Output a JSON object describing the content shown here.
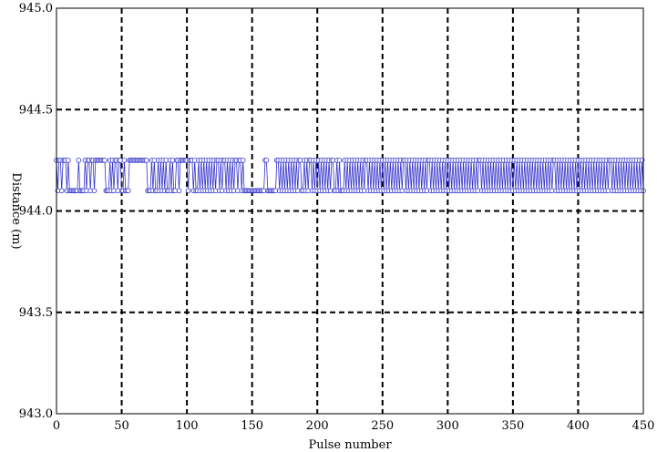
{
  "chart_data": {
    "type": "line",
    "title": "",
    "xlabel": "Pulse number",
    "ylabel": "Distance (m)",
    "xlim": [
      0,
      450
    ],
    "ylim": [
      943.0,
      945.0
    ],
    "xticks": [
      0,
      50,
      100,
      150,
      200,
      250,
      300,
      350,
      400,
      450
    ],
    "xtick_labels": [
      "0",
      "50",
      "100",
      "150",
      "200",
      "250",
      "300",
      "350",
      "400",
      "450"
    ],
    "yticks": [
      943.0,
      943.5,
      944.0,
      944.5,
      945.0
    ],
    "ytick_labels": [
      "943.0",
      "943.5",
      "944.0",
      "944.5",
      "945.0"
    ],
    "grid": true,
    "grid_style": "dashed",
    "series": [
      {
        "marker": "open-circle",
        "color": "#3333cc",
        "levels": [
          944.1,
          944.25
        ],
        "x_range": [
          0,
          450
        ],
        "count": 451,
        "y": [
          944.25,
          944.1,
          944.25,
          944.25,
          944.1,
          944.25,
          944.25,
          944.25,
          944.1,
          944.25,
          944.1,
          944.1,
          944.1,
          944.1,
          944.1,
          944.1,
          944.1,
          944.25,
          944.1,
          944.1,
          944.1,
          944.1,
          944.25,
          944.1,
          944.25,
          944.25,
          944.1,
          944.25,
          944.25,
          944.1,
          944.25,
          944.25,
          944.25,
          944.25,
          944.25,
          944.25,
          944.25,
          944.25,
          944.1,
          944.1,
          944.1,
          944.25,
          944.1,
          944.25,
          944.1,
          944.25,
          944.25,
          944.1,
          944.25,
          944.25,
          944.1,
          944.1,
          944.25,
          944.1,
          944.1,
          944.1,
          944.25,
          944.25,
          944.25,
          944.25,
          944.25,
          944.25,
          944.25,
          944.25,
          944.25,
          944.25,
          944.25,
          944.25,
          944.25,
          944.25,
          944.1,
          944.1,
          944.1,
          944.25,
          944.1,
          944.25,
          944.1,
          944.1,
          944.25,
          944.1,
          944.25,
          944.1,
          944.25,
          944.1,
          944.25,
          944.1,
          944.1,
          944.25,
          944.1,
          944.25,
          944.1,
          944.1,
          944.25,
          944.25,
          944.1,
          944.25,
          944.25,
          944.25,
          944.25,
          944.25,
          944.25,
          944.1,
          944.25,
          944.25,
          944.25,
          944.1,
          944.25,
          944.1,
          944.1,
          944.25,
          944.1,
          944.25,
          944.1,
          944.25,
          944.1,
          944.25,
          944.1,
          944.25,
          944.1,
          944.25,
          944.1,
          944.25,
          944.1,
          944.25,
          944.25,
          944.1,
          944.25,
          944.1,
          944.25,
          944.25,
          944.1,
          944.25,
          944.1,
          944.25,
          944.1,
          944.25,
          944.1,
          944.25,
          944.25,
          944.1,
          944.25,
          944.25,
          944.1,
          944.25,
          944.1,
          944.1,
          944.1,
          944.1,
          944.1,
          944.1,
          944.1,
          944.1,
          944.1,
          944.1,
          944.1,
          944.1,
          944.1,
          944.1,
          944.1,
          944.1,
          944.25,
          944.25,
          944.1,
          944.1,
          944.1,
          944.1,
          944.1,
          944.1,
          944.1,
          944.25,
          944.25,
          944.1,
          944.25,
          944.1,
          944.25,
          944.1,
          944.25,
          944.1,
          944.25,
          944.1,
          944.25,
          944.1,
          944.25,
          944.1,
          944.25,
          944.1,
          944.25,
          944.25,
          944.1,
          944.1,
          944.25,
          944.1,
          944.25,
          944.1,
          944.25,
          944.25,
          944.1,
          944.25,
          944.1,
          944.25,
          944.1,
          944.25,
          944.1,
          944.25,
          944.1,
          944.25,
          944.1,
          944.25,
          944.1,
          944.25,
          944.1,
          944.25,
          944.25,
          944.1,
          944.1,
          944.25,
          944.1,
          944.25,
          944.1,
          944.1,
          944.1,
          944.25,
          944.1,
          944.25,
          944.1,
          944.25,
          944.1,
          944.25,
          944.1,
          944.25,
          944.1,
          944.25,
          944.1,
          944.25,
          944.1,
          944.25,
          944.1,
          944.25,
          944.25,
          944.1,
          944.25,
          944.1,
          944.25,
          944.1,
          944.25,
          944.1,
          944.25,
          944.1,
          944.25,
          944.1,
          944.25,
          944.1,
          944.25,
          944.1,
          944.25,
          944.1,
          944.25,
          944.1,
          944.25,
          944.1,
          944.25,
          944.1,
          944.25,
          944.1,
          944.25,
          944.1,
          944.25,
          944.25,
          944.1,
          944.25,
          944.1,
          944.25,
          944.1,
          944.25,
          944.1,
          944.25,
          944.1,
          944.25,
          944.1,
          944.25,
          944.1,
          944.25,
          944.1,
          944.25,
          944.1,
          944.25,
          944.25,
          944.1,
          944.25,
          944.1,
          944.25,
          944.1,
          944.25,
          944.1,
          944.25,
          944.1,
          944.25,
          944.1,
          944.25,
          944.1,
          944.25,
          944.1,
          944.25,
          944.1,
          944.25,
          944.1,
          944.25,
          944.1,
          944.25,
          944.1,
          944.25,
          944.1,
          944.25,
          944.1,
          944.25,
          944.1,
          944.25,
          944.1,
          944.25,
          944.1,
          944.25,
          944.1,
          944.25,
          944.1,
          944.25,
          944.25,
          944.1,
          944.25,
          944.1,
          944.25,
          944.1,
          944.25,
          944.1,
          944.25,
          944.1,
          944.25,
          944.1,
          944.25,
          944.1,
          944.25,
          944.1,
          944.25,
          944.1,
          944.25,
          944.1,
          944.25,
          944.1,
          944.25,
          944.1,
          944.25,
          944.1,
          944.25,
          944.1,
          944.25,
          944.1,
          944.25,
          944.1,
          944.25,
          944.1,
          944.25,
          944.1,
          944.25,
          944.1,
          944.25,
          944.1,
          944.25,
          944.1,
          944.25,
          944.1,
          944.25,
          944.1,
          944.25,
          944.1,
          944.25,
          944.1,
          944.25,
          944.1,
          944.25,
          944.1,
          944.25,
          944.1,
          944.25,
          944.25,
          944.1,
          944.25,
          944.1,
          944.25,
          944.1,
          944.25,
          944.1,
          944.25,
          944.1,
          944.25,
          944.1,
          944.25,
          944.1,
          944.25,
          944.1,
          944.25,
          944.1,
          944.25,
          944.1,
          944.25,
          944.1,
          944.25,
          944.1,
          944.25,
          944.1,
          944.25,
          944.1,
          944.25,
          944.1,
          944.25,
          944.1,
          944.25,
          944.1,
          944.25,
          944.1,
          944.25,
          944.1,
          944.25,
          944.1,
          944.25,
          944.1,
          944.25,
          944.25,
          944.1,
          944.25,
          944.1,
          944.25,
          944.1,
          944.25,
          944.1,
          944.25,
          944.1,
          944.25,
          944.1,
          944.25,
          944.1,
          944.25,
          944.1,
          944.25,
          944.1,
          944.25,
          944.1,
          944.25,
          944.1,
          944.25,
          944.1,
          944.25,
          944.1
        ]
      }
    ]
  }
}
